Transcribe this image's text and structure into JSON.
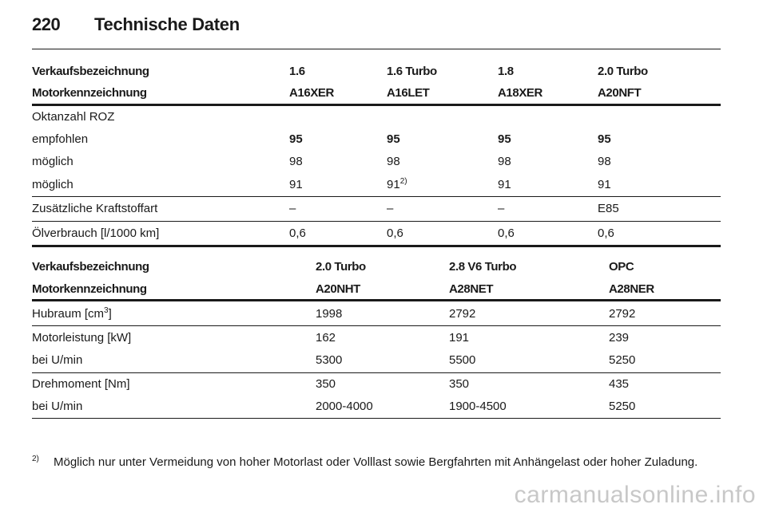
{
  "header": {
    "page_number": "220",
    "title": "Technische Daten"
  },
  "table1": {
    "header_rows": [
      [
        "Verkaufsbezeichnung",
        "1.6",
        "1.6 Turbo",
        "1.8",
        "2.0 Turbo"
      ],
      [
        "Motorkennzeichnung",
        "A16XER",
        "A16LET",
        "A18XER",
        "A20NFT"
      ]
    ],
    "octane_label": "Oktanzahl ROZ",
    "octane_rows": [
      [
        "empfohlen",
        "95",
        "95",
        "95",
        "95"
      ],
      [
        "möglich",
        "98",
        "98",
        "98",
        "98"
      ],
      [
        "möglich",
        "91",
        "91",
        "91",
        "91"
      ]
    ],
    "footnote_ref": "2)",
    "fuel_row": [
      "Zusätzliche Kraftstoffart",
      "–",
      "–",
      "–",
      "E85"
    ],
    "oil_row": [
      "Ölverbrauch [l/1000 km]",
      "0,6",
      "0,6",
      "0,6",
      "0,6"
    ]
  },
  "table2": {
    "header_rows": [
      [
        "Verkaufsbezeichnung",
        "2.0 Turbo",
        "2.8 V6 Turbo",
        "OPC"
      ],
      [
        "Motorkennzeichnung",
        "A20NHT",
        "A28NET",
        "A28NER"
      ]
    ],
    "displacement_label": "Hubraum [cm",
    "displacement_sup": "3",
    "displacement_close": "]",
    "displacement_values": [
      "1998",
      "2792",
      "2792"
    ],
    "power_row": [
      "Motorleistung [kW]",
      "162",
      "191",
      "239"
    ],
    "power_rpm_row": [
      "bei U/min",
      "5300",
      "5500",
      "5250"
    ],
    "torque_row": [
      "Drehmoment [Nm]",
      "350",
      "350",
      "435"
    ],
    "torque_rpm_row": [
      "bei U/min",
      "2000-4000",
      "1900-4500",
      "5250"
    ]
  },
  "footnote": {
    "mark": "2)",
    "text": "Möglich nur unter Vermeidung von hoher Motorlast oder Volllast sowie Bergfahrten mit Anhängelast oder hoher Zuladung."
  },
  "watermark": "carmanualsonline.info"
}
